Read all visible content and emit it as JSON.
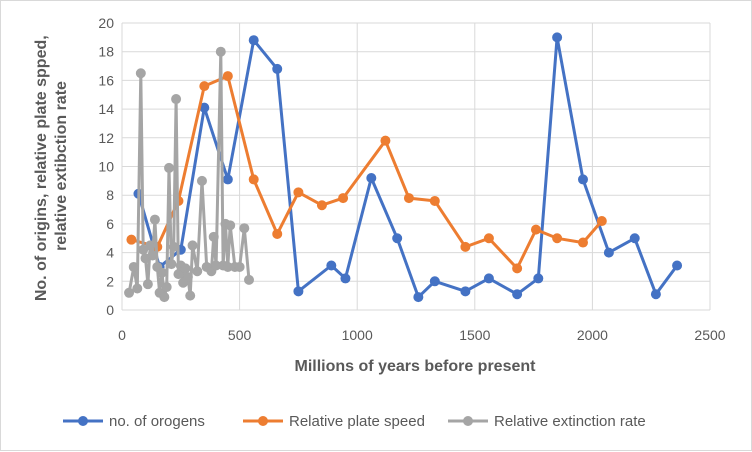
{
  "chart_data": {
    "type": "scatter",
    "mode": "lines+markers",
    "title": "",
    "xlabel": "Millions of years before present",
    "ylabel_lines": [
      "No. of origins, relative plate spped,",
      "relative extibction rate"
    ],
    "xlim": [
      0,
      2500
    ],
    "ylim": [
      0,
      20
    ],
    "xticks": [
      0,
      500,
      1000,
      1500,
      2000,
      2500
    ],
    "yticks": [
      0,
      2,
      4,
      6,
      8,
      10,
      12,
      14,
      16,
      18,
      20
    ],
    "grid": true,
    "legend_position": "bottom",
    "series": [
      {
        "name": "no. of orogens",
        "color": "#4472c4",
        "x": [
          70,
          160,
          250,
          350,
          450,
          560,
          660,
          750,
          890,
          950,
          1060,
          1170,
          1260,
          1330,
          1460,
          1560,
          1680,
          1770,
          1850,
          1960,
          2070,
          2180,
          2270,
          2360
        ],
        "y": [
          8.1,
          3.0,
          4.2,
          14.1,
          9.1,
          18.8,
          16.8,
          1.3,
          3.1,
          2.2,
          9.2,
          5.0,
          0.9,
          2.0,
          1.3,
          2.2,
          1.1,
          2.2,
          19.0,
          9.1,
          4.0,
          5.0,
          1.1,
          3.1
        ]
      },
      {
        "name": "Relative plate speed",
        "color": "#ed7d31",
        "x": [
          40,
          150,
          240,
          350,
          450,
          560,
          660,
          750,
          850,
          940,
          1120,
          1220,
          1330,
          1460,
          1560,
          1680,
          1760,
          1850,
          1960,
          2040
        ],
        "y": [
          4.9,
          4.4,
          7.6,
          15.6,
          16.3,
          9.1,
          5.3,
          8.2,
          7.3,
          7.8,
          11.8,
          7.8,
          7.6,
          4.4,
          5.0,
          2.9,
          5.6,
          5.0,
          4.7,
          6.2
        ]
      },
      {
        "name": "Relative extinction rate",
        "color": "#a5a5a5",
        "x": [
          30,
          50,
          65,
          80,
          90,
          100,
          110,
          120,
          130,
          140,
          150,
          160,
          170,
          180,
          190,
          200,
          210,
          220,
          230,
          240,
          250,
          260,
          270,
          280,
          290,
          300,
          320,
          340,
          360,
          380,
          390,
          400,
          420,
          430,
          440,
          450,
          460,
          480,
          500,
          520,
          540
        ],
        "y": [
          1.2,
          3.0,
          1.5,
          16.5,
          4.2,
          3.6,
          1.8,
          4.5,
          3.8,
          6.3,
          3.0,
          1.2,
          2.6,
          0.9,
          1.6,
          9.9,
          3.2,
          4.4,
          14.7,
          2.5,
          3.1,
          1.9,
          2.9,
          2.3,
          1.0,
          4.5,
          2.7,
          9.0,
          3.0,
          2.7,
          5.1,
          3.1,
          18.0,
          3.1,
          6.0,
          3.0,
          5.9,
          3.0,
          3.0,
          5.7,
          2.1
        ]
      }
    ]
  }
}
